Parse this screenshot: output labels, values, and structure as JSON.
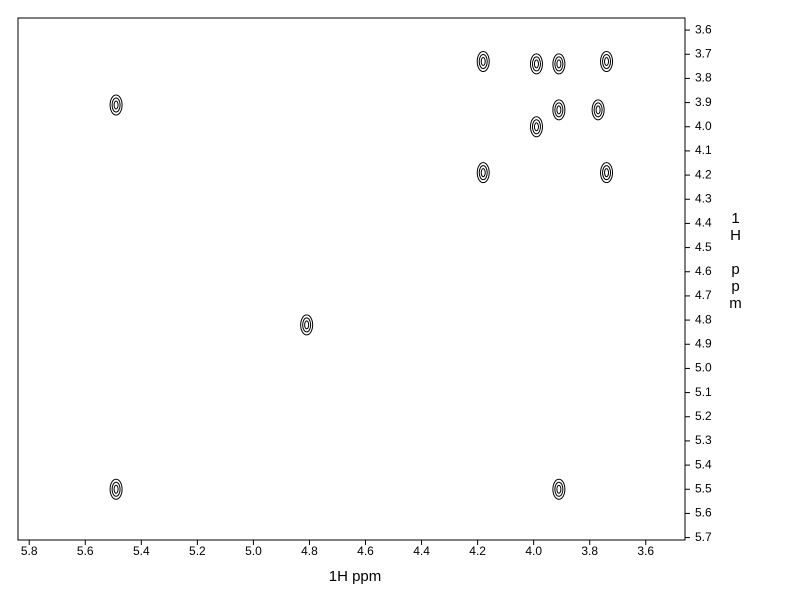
{
  "chart_data": {
    "type": "scatter",
    "x_label": "1H ppm",
    "y_label": "1H ppm",
    "xlim": [
      5.84,
      3.46
    ],
    "ylim": [
      3.55,
      5.71
    ],
    "xticks": [
      5.8,
      5.6,
      5.4,
      5.2,
      {
        "value": 5,
        "label": "5.0"
      },
      4.8,
      4.6,
      4.4,
      4.2,
      {
        "value": 4,
        "label": "4.0"
      },
      3.8,
      3.6
    ],
    "yticks": [
      3.6,
      3.7,
      3.8,
      3.9,
      {
        "value": 4,
        "label": "4.0"
      },
      4.1,
      4.2,
      4.3,
      4.4,
      4.5,
      4.6,
      4.7,
      4.8,
      4.9,
      {
        "value": 5,
        "label": "5.0"
      },
      5.1,
      5.2,
      5.3,
      5.4,
      5.5,
      5.6,
      5.7
    ],
    "color": "#000000",
    "x": [
      5.49,
      5.49,
      4.81,
      4.18,
      4.18,
      3.99,
      3.99,
      3.91,
      3.91,
      3.77,
      3.74,
      3.74,
      3.91
    ],
    "y": [
      3.91,
      5.5,
      4.82,
      3.73,
      4.19,
      3.74,
      4.0,
      3.74,
      3.93,
      3.93,
      3.73,
      4.19,
      5.5
    ]
  }
}
